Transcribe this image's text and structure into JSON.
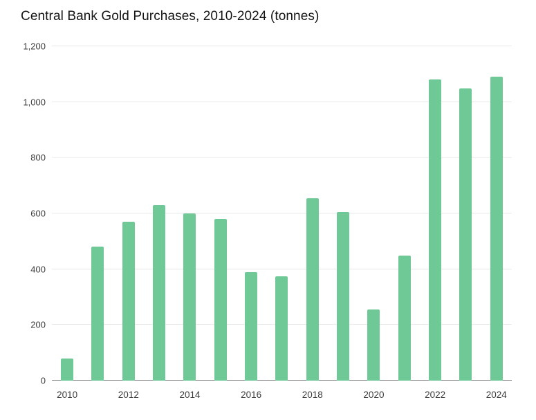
{
  "chart_data": {
    "type": "bar",
    "title": "Central Bank Gold Purchases, 2010-2024 (tonnes)",
    "categories": [
      "2010",
      "2011",
      "2012",
      "2013",
      "2014",
      "2015",
      "2016",
      "2017",
      "2018",
      "2019",
      "2020",
      "2021",
      "2022",
      "2023",
      "2024"
    ],
    "values": [
      80,
      480,
      570,
      630,
      600,
      580,
      390,
      375,
      655,
      605,
      255,
      450,
      1080,
      1050,
      1090
    ],
    "xlabel": "",
    "ylabel": "",
    "ylim": [
      0,
      1200
    ],
    "yticks": [
      0,
      200,
      400,
      600,
      800,
      1000,
      1200
    ],
    "ytick_labels": [
      "0",
      "200",
      "400",
      "600",
      "800",
      "1,000",
      "1,200"
    ],
    "xtick_labels": [
      "2010",
      "2012",
      "2014",
      "2016",
      "2018",
      "2020",
      "2022",
      "2024"
    ],
    "grid": true,
    "legend": "none",
    "colors": {
      "bar": "#6fc997",
      "gridline": "#e8e8e8",
      "axis_line": "#8c8c8c",
      "tick_label": "#3a3a3a",
      "title": "#141414",
      "background": "#ffffff"
    }
  }
}
